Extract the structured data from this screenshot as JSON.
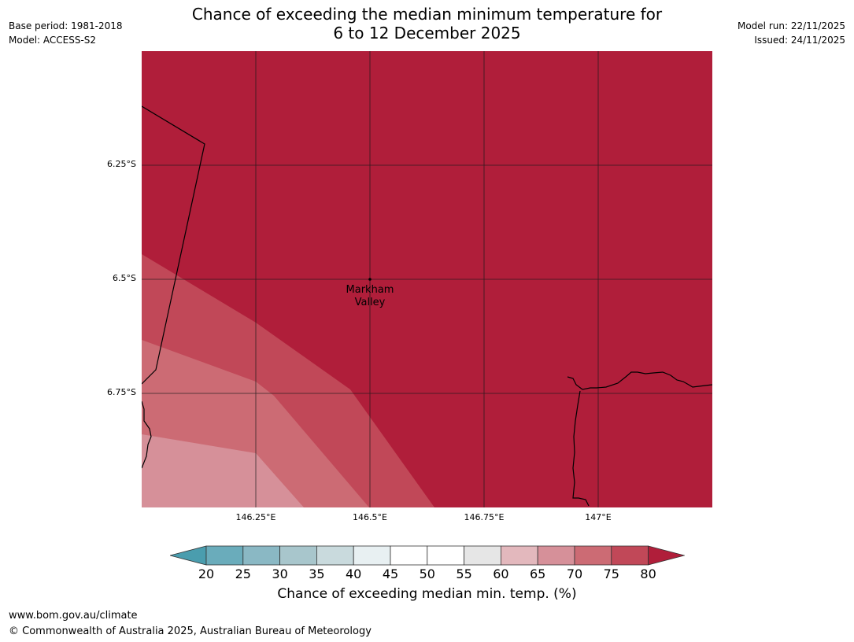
{
  "header": {
    "base_period": "Base period: 1981-2018",
    "model": "Model: ACCESS-S2",
    "model_run": "Model run: 22/11/2025",
    "issued": "Issued: 24/11/2025",
    "title_line1": "Chance of exceeding the median minimum temperature for",
    "title_line2": "6 to 12 December 2025"
  },
  "map": {
    "lat_labels": [
      "6.25°S",
      "6.5°S",
      "6.75°S"
    ],
    "lon_labels": [
      "146.25°E",
      "146.5°E",
      "146.75°E",
      "147°E"
    ],
    "place": {
      "line1": "Markham",
      "line2": "Valley"
    },
    "colors": {
      "c80plus": "#b01e3a",
      "c75_80": "#c14858",
      "c70_75": "#cc6b74",
      "c65_70": "#d69099"
    }
  },
  "colorbar": {
    "ticks": [
      "20",
      "25",
      "30",
      "35",
      "40",
      "45",
      "50",
      "55",
      "60",
      "65",
      "70",
      "75",
      "80"
    ],
    "colors": [
      "#6aacbb",
      "#8ab8c4",
      "#a8c6cc",
      "#c9dadd",
      "#e8f0f2",
      "#ffffff",
      "#ffffff",
      "#e6e6e6",
      "#e3b8bd",
      "#d69099",
      "#cc6b74",
      "#c14858"
    ],
    "under_color": "#4a9dae",
    "over_color": "#b01e3a",
    "label": "Chance of exceeding median min. temp. (%)"
  },
  "footer": {
    "url": "www.bom.gov.au/climate",
    "copyright": "© Commonwealth of Australia 2025, Australian Bureau of Meteorology"
  }
}
